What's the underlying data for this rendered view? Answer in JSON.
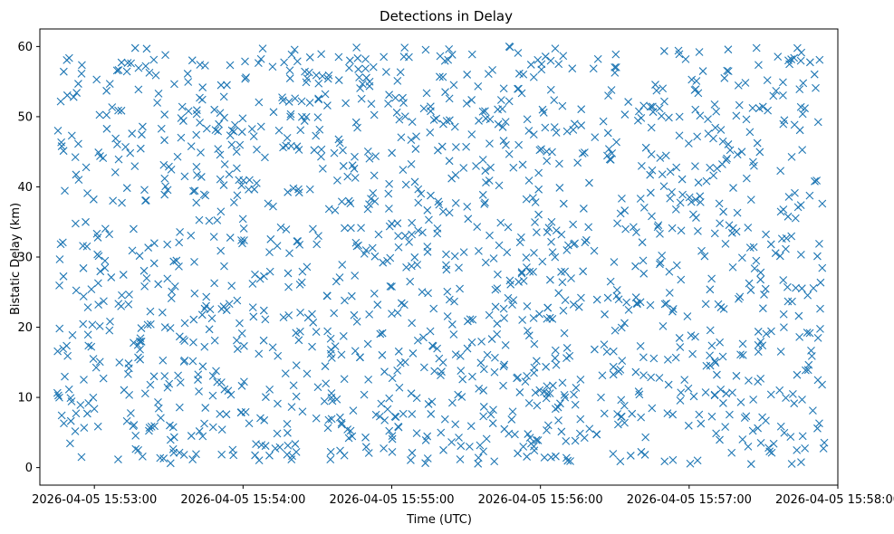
{
  "chart_data": {
    "type": "scatter",
    "title": "Detections in Delay",
    "xlabel": "Time (UTC)",
    "ylabel": "Bistatic Delay (km)",
    "marker": "x",
    "color": "#1f77b4",
    "x_range": [
      "2026-04-05 15:52:38",
      "2026-04-05 15:58:00"
    ],
    "ylim": [
      -2.5,
      62.5
    ],
    "x_ticks": [
      "2026-04-05 15:53:00",
      "2026-04-05 15:54:00",
      "2026-04-05 15:55:00",
      "2026-04-05 15:56:00",
      "2026-04-05 15:57:00",
      "2026-04-05 15:58:00"
    ],
    "y_ticks": [
      "0",
      "10",
      "20",
      "30",
      "40",
      "50",
      "60"
    ],
    "grid": false,
    "legend": "none",
    "points_count": 1500,
    "x_start": "2026-04-05 15:52:45",
    "x_end": "2026-04-05 15:57:55",
    "y_range": [
      0.5,
      60
    ]
  }
}
